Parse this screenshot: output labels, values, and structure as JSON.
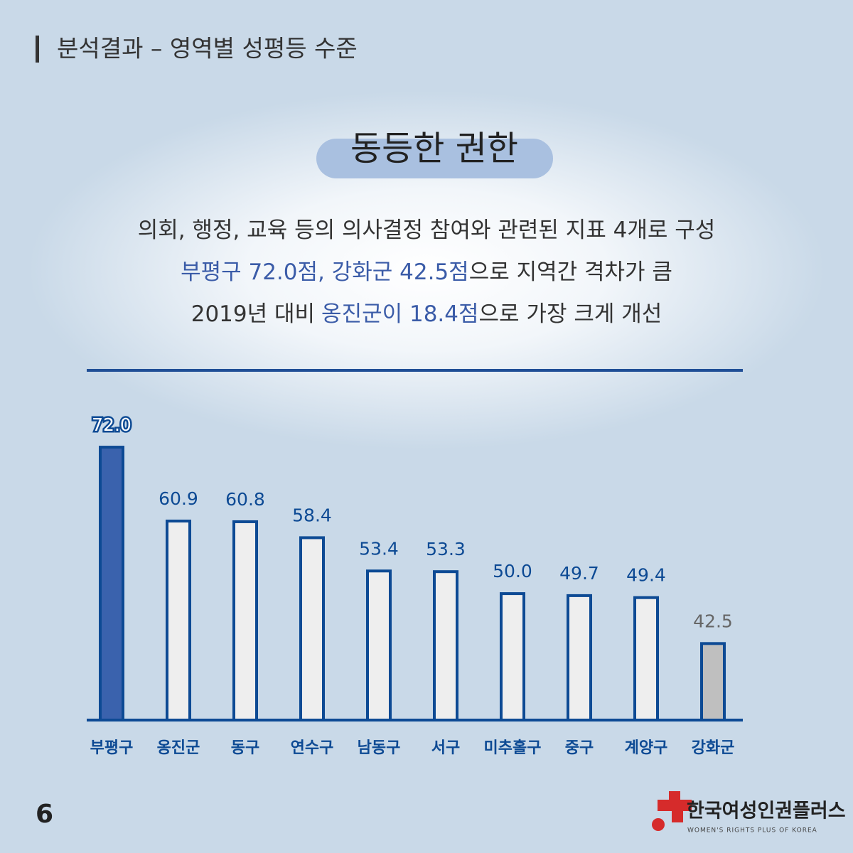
{
  "header": {
    "title": "분석결과 – 영역별 성평등 수준"
  },
  "section": {
    "title": "동등한 권한"
  },
  "description": {
    "lines": [
      [
        {
          "text": "의회, 행정, 교육 등의 의사결정 참여와 관련된 지표 4개로 구성",
          "highlight": false
        }
      ],
      [
        {
          "text": "부평구 72.0점, 강화군 42.5점",
          "highlight": true
        },
        {
          "text": "으로 지역간 격차가 큼",
          "highlight": false
        }
      ],
      [
        {
          "text": "2019년 대비",
          "highlight": false
        },
        {
          "text": "옹진군이 18.4점",
          "highlight": true
        },
        {
          "text": "으로 가장 크게 개선",
          "highlight": false
        }
      ]
    ]
  },
  "chart_data": {
    "type": "bar",
    "categories": [
      "부평구",
      "옹진군",
      "동구",
      "연수구",
      "남동구",
      "서구",
      "미추홀구",
      "중구",
      "계양구",
      "강화군"
    ],
    "values": [
      72.0,
      60.9,
      60.8,
      58.4,
      53.4,
      53.3,
      50.0,
      49.7,
      49.4,
      42.5
    ],
    "value_labels": [
      "72.0",
      "60.9",
      "60.8",
      "58.4",
      "53.4",
      "53.3",
      "50.0",
      "49.7",
      "49.4",
      "42.5"
    ],
    "colors": [
      "#3a62ad",
      "#eeeeee",
      "#eeeeee",
      "#eeeeee",
      "#eeeeee",
      "#eeeeee",
      "#eeeeee",
      "#eeeeee",
      "#eeeeee",
      "#bfbfbf"
    ],
    "ylim": [
      31,
      75
    ]
  },
  "footer": {
    "page": "6",
    "logo_name": "한국여성인권플러스",
    "logo_subtitle": "WOMEN'S RIGHTS PLUS OF KOREA"
  }
}
